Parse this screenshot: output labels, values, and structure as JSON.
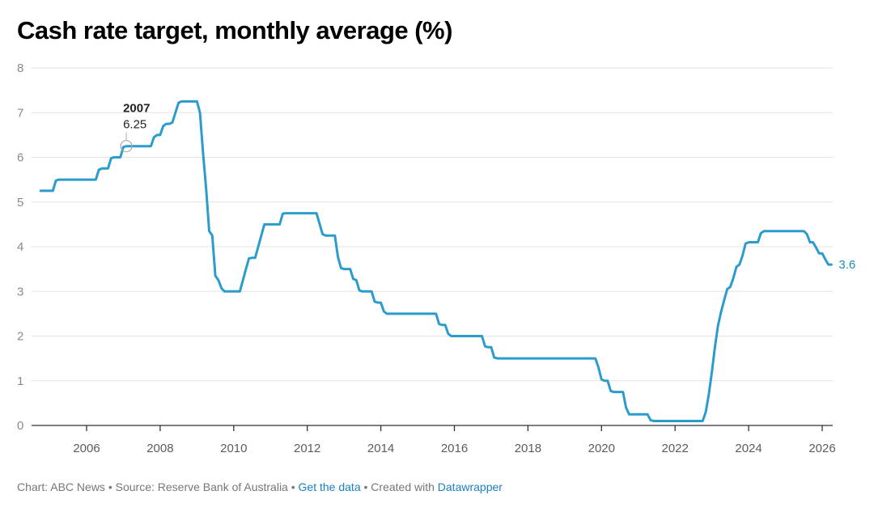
{
  "chart_data": {
    "type": "line",
    "title": "Cash rate target, monthly average (%)",
    "xlabel": "",
    "ylabel": "",
    "ylim": [
      0,
      8
    ],
    "xlim": [
      2004.6,
      2026.3
    ],
    "y_ticks": [
      "0",
      "1",
      "2",
      "3",
      "4",
      "5",
      "6",
      "7",
      "8"
    ],
    "x_ticks": [
      "2006",
      "2008",
      "2010",
      "2012",
      "2014",
      "2016",
      "2018",
      "2020",
      "2022",
      "2024",
      "2026"
    ],
    "grid": true,
    "line_color": "#2b9ccb",
    "start": [
      2004,
      10
    ],
    "series": [
      {
        "name": "Cash rate target",
        "values": [
          5.25,
          5.25,
          5.25,
          5.25,
          5.25,
          5.48,
          5.5,
          5.5,
          5.5,
          5.5,
          5.5,
          5.5,
          5.5,
          5.5,
          5.5,
          5.5,
          5.5,
          5.5,
          5.5,
          5.72,
          5.75,
          5.75,
          5.75,
          5.98,
          6.0,
          6.0,
          6.0,
          6.23,
          6.25,
          6.25,
          6.25,
          6.25,
          6.25,
          6.25,
          6.25,
          6.25,
          6.25,
          6.45,
          6.5,
          6.5,
          6.7,
          6.75,
          6.75,
          6.78,
          7.0,
          7.22,
          7.25,
          7.25,
          7.25,
          7.25,
          7.25,
          7.25,
          7.0,
          6.1,
          5.3,
          4.35,
          4.25,
          3.35,
          3.25,
          3.07,
          3.0,
          3.0,
          3.0,
          3.0,
          3.0,
          3.0,
          3.25,
          3.5,
          3.74,
          3.75,
          3.75,
          4.0,
          4.25,
          4.5,
          4.5,
          4.5,
          4.5,
          4.5,
          4.5,
          4.74,
          4.75,
          4.75,
          4.75,
          4.75,
          4.75,
          4.75,
          4.75,
          4.75,
          4.75,
          4.75,
          4.75,
          4.52,
          4.28,
          4.25,
          4.25,
          4.25,
          4.25,
          3.77,
          3.52,
          3.5,
          3.5,
          3.5,
          3.28,
          3.25,
          3.02,
          3.0,
          3.0,
          3.0,
          3.0,
          2.77,
          2.75,
          2.75,
          2.55,
          2.5,
          2.5,
          2.5,
          2.5,
          2.5,
          2.5,
          2.5,
          2.5,
          2.5,
          2.5,
          2.5,
          2.5,
          2.5,
          2.5,
          2.5,
          2.5,
          2.5,
          2.27,
          2.25,
          2.25,
          2.05,
          2.0,
          2.0,
          2.0,
          2.0,
          2.0,
          2.0,
          2.0,
          2.0,
          2.0,
          2.0,
          2.0,
          1.77,
          1.75,
          1.75,
          1.52,
          1.5,
          1.5,
          1.5,
          1.5,
          1.5,
          1.5,
          1.5,
          1.5,
          1.5,
          1.5,
          1.5,
          1.5,
          1.5,
          1.5,
          1.5,
          1.5,
          1.5,
          1.5,
          1.5,
          1.5,
          1.5,
          1.5,
          1.5,
          1.5,
          1.5,
          1.5,
          1.5,
          1.5,
          1.5,
          1.5,
          1.5,
          1.5,
          1.5,
          1.3,
          1.03,
          1.0,
          1.0,
          0.77,
          0.75,
          0.75,
          0.75,
          0.75,
          0.4,
          0.25,
          0.25,
          0.25,
          0.25,
          0.25,
          0.25,
          0.25,
          0.12,
          0.1,
          0.1,
          0.1,
          0.1,
          0.1,
          0.1,
          0.1,
          0.1,
          0.1,
          0.1,
          0.1,
          0.1,
          0.1,
          0.1,
          0.1,
          0.1,
          0.1,
          0.3,
          0.7,
          1.2,
          1.75,
          2.23,
          2.54,
          2.8,
          3.05,
          3.1,
          3.3,
          3.55,
          3.6,
          3.8,
          4.07,
          4.1,
          4.1,
          4.1,
          4.1,
          4.3,
          4.35,
          4.35,
          4.35,
          4.35,
          4.35,
          4.35,
          4.35,
          4.35,
          4.35,
          4.35,
          4.35,
          4.35,
          4.35,
          4.35,
          4.28,
          4.1,
          4.1,
          3.98,
          3.85,
          3.85,
          3.72,
          3.6,
          3.6
        ]
      }
    ],
    "annotations": [
      {
        "label": "2007",
        "value": "6.25",
        "x": 2007.08,
        "y": 6.25
      }
    ],
    "end_label": "3.6"
  },
  "footer": {
    "chart_by": "Chart: ABC News",
    "sep1": " • ",
    "source": "Source: Reserve Bank of Australia",
    "sep2": " • ",
    "get_data": "Get the data",
    "sep3": " • ",
    "created_with": "Created with ",
    "tool": "Datawrapper"
  }
}
